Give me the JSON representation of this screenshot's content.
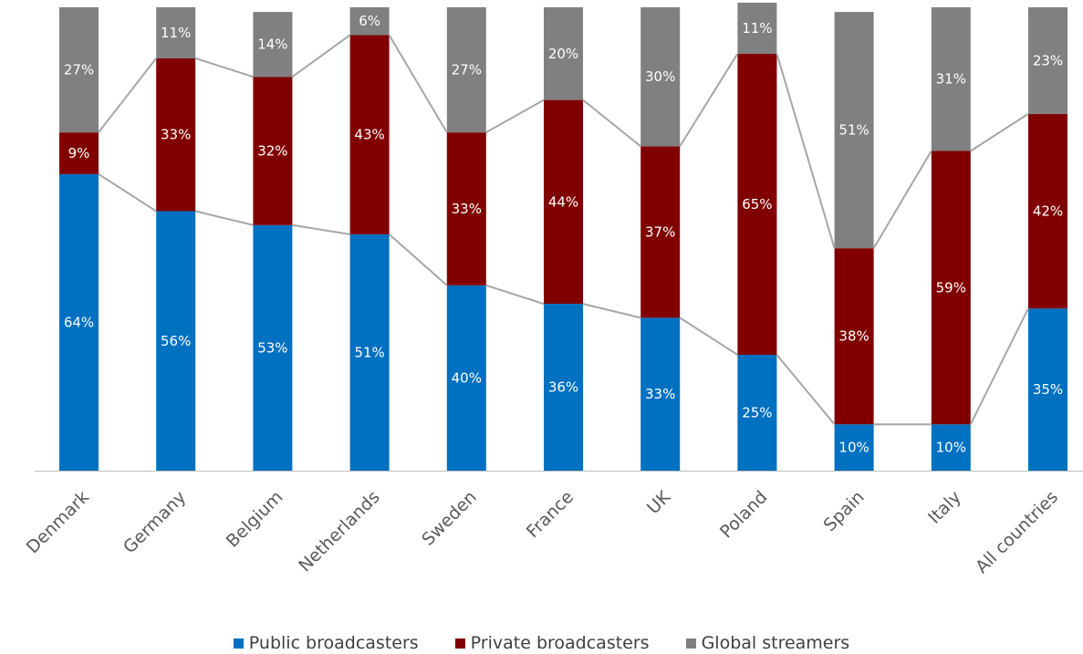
{
  "chart_data": {
    "type": "bar",
    "stacked": true,
    "title": "",
    "xlabel": "",
    "ylabel": "",
    "ylim": [
      0,
      100
    ],
    "grid": false,
    "legend_position": "bottom",
    "categories": [
      "Denmark",
      "Germany",
      "Belgium",
      "Netherlands",
      "Sweden",
      "France",
      "UK",
      "Poland",
      "Spain",
      "Italy",
      "All countries"
    ],
    "series": [
      {
        "name": "Public broadcasters",
        "color": "#0070c0",
        "values": [
          64,
          56,
          53,
          51,
          40,
          36,
          33,
          25,
          10,
          10,
          35
        ]
      },
      {
        "name": "Private broadcasters",
        "color": "#800000",
        "values": [
          9,
          33,
          32,
          43,
          33,
          44,
          37,
          65,
          38,
          59,
          42
        ]
      },
      {
        "name": "Global streamers",
        "color": "#808080",
        "values": [
          27,
          11,
          14,
          6,
          27,
          20,
          30,
          11,
          51,
          31,
          23
        ]
      }
    ],
    "connector_lines": true,
    "value_suffix": "%"
  }
}
